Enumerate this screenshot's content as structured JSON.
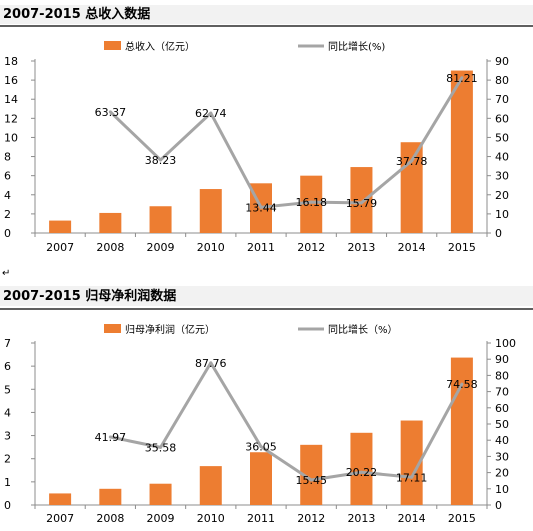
{
  "chart_data": [
    {
      "type": "bar",
      "title": "2007-2015 总收入数据",
      "categories": [
        "2007",
        "2008",
        "2009",
        "2010",
        "2011",
        "2012",
        "2013",
        "2014",
        "2015"
      ],
      "series": [
        {
          "name": "总收入（亿元）",
          "type": "bar",
          "axis": "left",
          "values": [
            1.3,
            2.1,
            2.8,
            4.6,
            5.2,
            6.0,
            6.9,
            9.5,
            17.0
          ]
        },
        {
          "name": "同比增长(%)",
          "type": "line",
          "axis": "right",
          "values": [
            null,
            63.37,
            38.23,
            62.74,
            13.44,
            16.18,
            15.79,
            37.78,
            81.21
          ],
          "labels": [
            "",
            "63.37",
            "38.23",
            "62.74",
            "13.44",
            "16.18",
            "15.79",
            "37.78",
            "81.21"
          ]
        }
      ],
      "ylim": [
        0,
        18
      ],
      "yticks": [
        "0",
        "2",
        "4",
        "6",
        "8",
        "10",
        "12",
        "14",
        "16",
        "18"
      ],
      "y2lim": [
        0,
        90
      ],
      "y2ticks": [
        "0",
        "10",
        "20",
        "30",
        "40",
        "50",
        "60",
        "70",
        "80",
        "90"
      ],
      "legend": "top",
      "grid": false,
      "colors": {
        "bar": "#ED7D31",
        "line": "#A5A5A5"
      }
    },
    {
      "type": "bar",
      "title": "2007-2015 归母净利润数据",
      "categories": [
        "2007",
        "2008",
        "2009",
        "2010",
        "2011",
        "2012",
        "2013",
        "2014",
        "2015"
      ],
      "series": [
        {
          "name": "归母净利润（亿元）",
          "type": "bar",
          "axis": "left",
          "values": [
            0.5,
            0.7,
            0.92,
            1.68,
            2.28,
            2.6,
            3.12,
            3.65,
            6.37
          ]
        },
        {
          "name": "同比增长（%）",
          "type": "line",
          "axis": "right",
          "values": [
            null,
            41.97,
            35.58,
            87.76,
            36.05,
            15.45,
            20.22,
            17.11,
            74.58
          ],
          "labels": [
            "",
            "41.97",
            "35.58",
            "87.76",
            "36.05",
            "15.45",
            "20.22",
            "17.11",
            "74.58"
          ]
        }
      ],
      "ylim": [
        0,
        7
      ],
      "yticks": [
        "0",
        "1",
        "2",
        "3",
        "4",
        "5",
        "6",
        "7"
      ],
      "y2lim": [
        0,
        100
      ],
      "y2ticks": [
        "0",
        "10",
        "20",
        "30",
        "40",
        "50",
        "60",
        "70",
        "80",
        "90",
        "100"
      ],
      "legend": "top",
      "grid": false,
      "colors": {
        "bar": "#ED7D31",
        "line": "#A5A5A5"
      }
    }
  ],
  "separator_mark": "↵"
}
